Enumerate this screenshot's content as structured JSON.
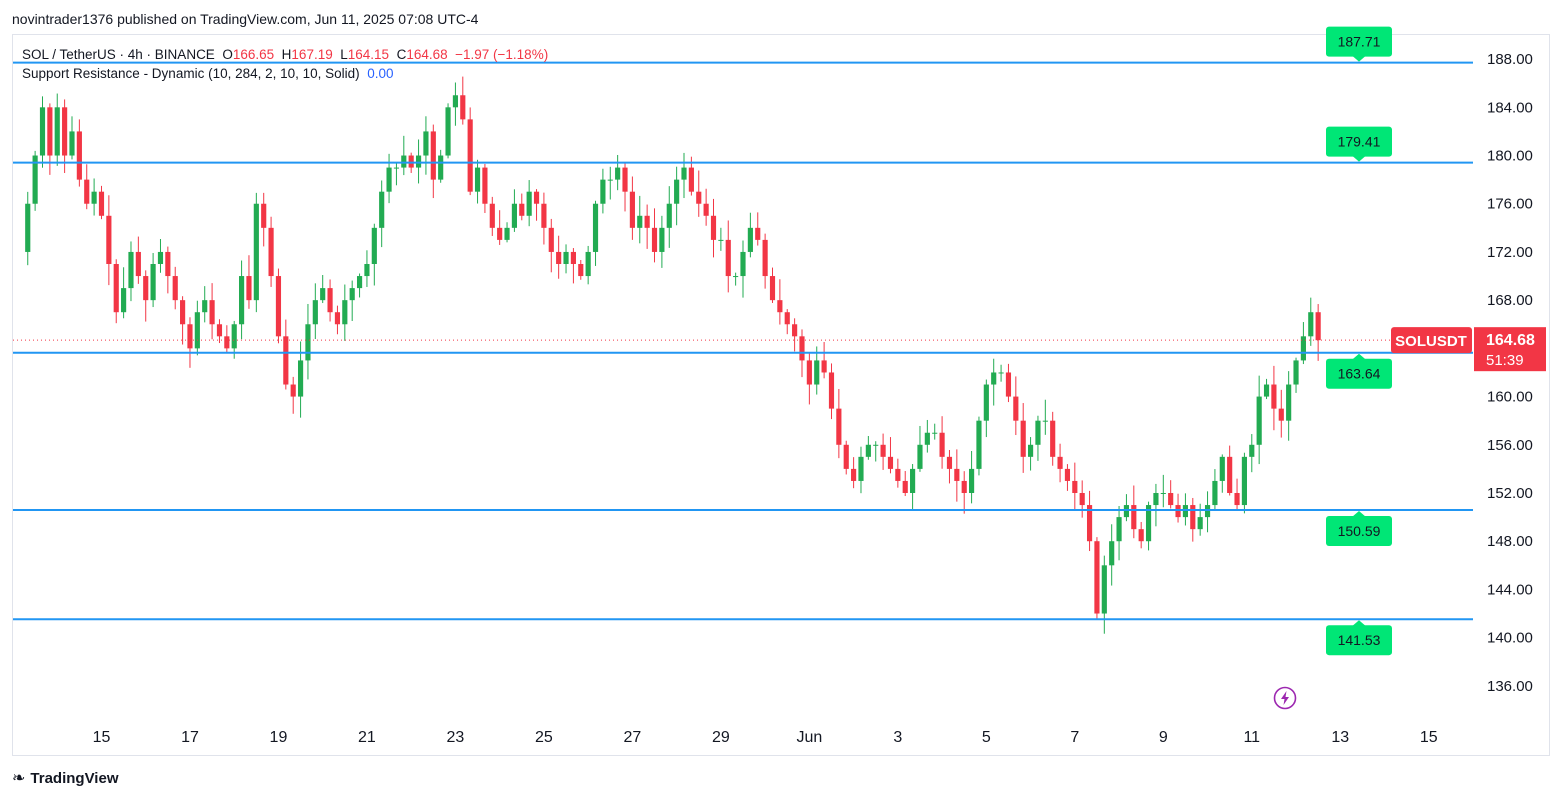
{
  "header": {
    "published_line": "novintrader1376 published on TradingView.com, Jun 11, 2025 07:08 UTC-4"
  },
  "legend": {
    "symbol": "SOL / TetherUS · 4h · BINANCE",
    "open_label": "O",
    "open_value": "166.65",
    "high_label": "H",
    "high_value": "167.19",
    "low_label": "L",
    "low_value": "164.15",
    "close_label": "C",
    "close_value": "164.68",
    "change": "−1.97 (−1.18%)",
    "indicator": "Support Resistance - Dynamic (10, 284, 2, 10, 10, Solid)",
    "indicator_value": "0.00"
  },
  "footer": {
    "brand": "TradingView"
  },
  "colors": {
    "up": "#22ab52",
    "down": "#f23645",
    "level_line": "#2196f3",
    "level_badge": "#00e676",
    "price_badge": "#f23645",
    "grid": "#f0f3fa"
  },
  "icons": {
    "bolt": "lightning-bolt-icon",
    "logo": "tradingview-logo-icon"
  },
  "chart_data": {
    "type": "candlestick",
    "interval": "4h",
    "symbol": "SOLUSDT",
    "ylim": [
      133,
      190
    ],
    "y_ticks": [
      136,
      140,
      144,
      148,
      152,
      156,
      160,
      164,
      168,
      172,
      176,
      180,
      184,
      188
    ],
    "y_tick_labels": [
      "136.00",
      "140.00",
      "144.00",
      "148.00",
      "152.00",
      "156.00",
      "160.00",
      "164.00",
      "168.00",
      "172.00",
      "176.00",
      "180.00",
      "184.00",
      "188.00"
    ],
    "x_labels": [
      {
        "label": "15",
        "t": 10
      },
      {
        "label": "17",
        "t": 22
      },
      {
        "label": "19",
        "t": 34
      },
      {
        "label": "21",
        "t": 46
      },
      {
        "label": "23",
        "t": 58
      },
      {
        "label": "25",
        "t": 70
      },
      {
        "label": "27",
        "t": 82
      },
      {
        "label": "29",
        "t": 94
      },
      {
        "label": "Jun",
        "t": 106
      },
      {
        "label": "3",
        "t": 118
      },
      {
        "label": "5",
        "t": 130
      },
      {
        "label": "7",
        "t": 142
      },
      {
        "label": "9",
        "t": 154
      },
      {
        "label": "11",
        "t": 166
      },
      {
        "label": "13",
        "t": 178
      },
      {
        "label": "15",
        "t": 190
      }
    ],
    "levels": [
      187.71,
      179.41,
      163.64,
      150.59,
      141.53
    ],
    "level_labels": [
      "187.71",
      "179.41",
      "163.64",
      "150.59",
      "141.53"
    ],
    "last_price": 164.68,
    "last_price_label": "164.68",
    "countdown": "51:39",
    "symbol_badge": "SOLUSDT",
    "close_path": [
      [
        -1,
        172
      ],
      [
        0,
        176
      ],
      [
        1,
        180
      ],
      [
        2,
        184
      ],
      [
        3,
        180
      ],
      [
        4,
        184
      ],
      [
        5,
        180
      ],
      [
        6,
        182
      ],
      [
        7,
        178
      ],
      [
        8,
        176
      ],
      [
        9,
        177
      ],
      [
        10,
        175
      ],
      [
        11,
        171
      ],
      [
        12,
        167
      ],
      [
        13,
        169
      ],
      [
        14,
        172
      ],
      [
        15,
        170
      ],
      [
        16,
        168
      ],
      [
        17,
        171
      ],
      [
        18,
        172
      ],
      [
        19,
        170
      ],
      [
        20,
        168
      ],
      [
        21,
        166
      ],
      [
        22,
        164
      ],
      [
        23,
        167
      ],
      [
        24,
        168
      ],
      [
        25,
        166
      ],
      [
        26,
        165
      ],
      [
        27,
        164
      ],
      [
        28,
        166
      ],
      [
        29,
        170
      ],
      [
        30,
        168
      ],
      [
        31,
        176
      ],
      [
        32,
        174
      ],
      [
        33,
        170
      ],
      [
        34,
        165
      ],
      [
        35,
        161
      ],
      [
        36,
        160
      ],
      [
        37,
        163
      ],
      [
        38,
        166
      ],
      [
        39,
        168
      ],
      [
        40,
        169
      ],
      [
        41,
        167
      ],
      [
        42,
        166
      ],
      [
        43,
        168
      ],
      [
        44,
        169
      ],
      [
        45,
        170
      ],
      [
        46,
        171
      ],
      [
        47,
        174
      ],
      [
        48,
        177
      ],
      [
        49,
        179
      ],
      [
        50,
        179
      ],
      [
        51,
        180
      ],
      [
        52,
        179
      ],
      [
        53,
        180
      ],
      [
        54,
        182
      ],
      [
        55,
        178
      ],
      [
        56,
        180
      ],
      [
        57,
        184
      ],
      [
        58,
        185
      ],
      [
        59,
        183
      ],
      [
        60,
        177
      ],
      [
        61,
        179
      ],
      [
        62,
        176
      ],
      [
        63,
        174
      ],
      [
        64,
        173
      ],
      [
        65,
        174
      ],
      [
        66,
        176
      ],
      [
        67,
        175
      ],
      [
        68,
        177
      ],
      [
        69,
        176
      ],
      [
        70,
        174
      ],
      [
        71,
        172
      ],
      [
        72,
        171
      ],
      [
        73,
        172
      ],
      [
        74,
        171
      ],
      [
        75,
        170
      ],
      [
        76,
        172
      ],
      [
        77,
        176
      ],
      [
        78,
        178
      ],
      [
        79,
        178
      ],
      [
        80,
        179
      ],
      [
        81,
        177
      ],
      [
        82,
        174
      ],
      [
        83,
        175
      ],
      [
        84,
        174
      ],
      [
        85,
        172
      ],
      [
        86,
        174
      ],
      [
        87,
        176
      ],
      [
        88,
        178
      ],
      [
        89,
        179
      ],
      [
        90,
        177
      ],
      [
        91,
        176
      ],
      [
        92,
        175
      ],
      [
        93,
        173
      ],
      [
        94,
        173
      ],
      [
        95,
        170
      ],
      [
        96,
        170
      ],
      [
        97,
        172
      ],
      [
        98,
        174
      ],
      [
        99,
        173
      ],
      [
        100,
        170
      ],
      [
        101,
        168
      ],
      [
        102,
        167
      ],
      [
        103,
        166
      ],
      [
        104,
        165
      ],
      [
        105,
        163
      ],
      [
        106,
        161
      ],
      [
        107,
        163
      ],
      [
        108,
        162
      ],
      [
        109,
        159
      ],
      [
        110,
        156
      ],
      [
        111,
        154
      ],
      [
        112,
        153
      ],
      [
        113,
        155
      ],
      [
        114,
        156
      ],
      [
        115,
        156
      ],
      [
        116,
        155
      ],
      [
        117,
        154
      ],
      [
        118,
        153
      ],
      [
        119,
        152
      ],
      [
        120,
        154
      ],
      [
        121,
        156
      ],
      [
        122,
        157
      ],
      [
        123,
        157
      ],
      [
        124,
        155
      ],
      [
        125,
        154
      ],
      [
        126,
        153
      ],
      [
        127,
        152
      ],
      [
        128,
        154
      ],
      [
        129,
        158
      ],
      [
        130,
        161
      ],
      [
        131,
        162
      ],
      [
        132,
        162
      ],
      [
        133,
        160
      ],
      [
        134,
        158
      ],
      [
        135,
        155
      ],
      [
        136,
        156
      ],
      [
        137,
        158
      ],
      [
        138,
        158
      ],
      [
        139,
        155
      ],
      [
        140,
        154
      ],
      [
        141,
        153
      ],
      [
        142,
        152
      ],
      [
        143,
        151
      ],
      [
        144,
        148
      ],
      [
        145,
        142
      ],
      [
        146,
        146
      ],
      [
        147,
        148
      ],
      [
        148,
        150
      ],
      [
        149,
        151
      ],
      [
        150,
        149
      ],
      [
        151,
        148
      ],
      [
        152,
        151
      ],
      [
        153,
        152
      ],
      [
        154,
        152
      ],
      [
        155,
        151
      ],
      [
        156,
        150
      ],
      [
        157,
        151
      ],
      [
        158,
        149
      ],
      [
        159,
        150
      ],
      [
        160,
        151
      ],
      [
        161,
        153
      ],
      [
        162,
        155
      ],
      [
        163,
        152
      ],
      [
        164,
        151
      ],
      [
        165,
        155
      ],
      [
        166,
        156
      ],
      [
        167,
        160
      ],
      [
        168,
        161
      ],
      [
        169,
        159
      ],
      [
        170,
        158
      ],
      [
        171,
        161
      ],
      [
        172,
        163
      ],
      [
        173,
        165
      ],
      [
        174,
        167
      ],
      [
        175,
        164.68
      ]
    ],
    "x_domain": [
      -2,
      196
    ]
  }
}
